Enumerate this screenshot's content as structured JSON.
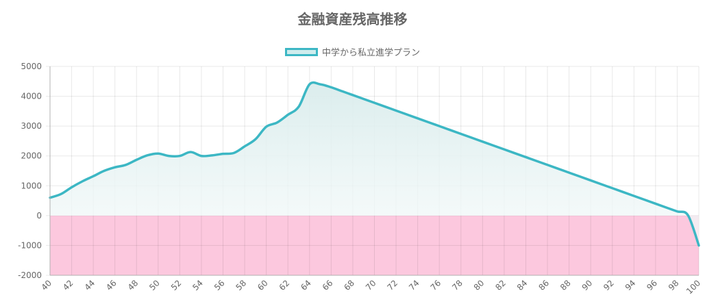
{
  "chart_data": {
    "type": "area",
    "title": "金融資産残高推移",
    "legend": {
      "placement": "top-center",
      "entries": [
        "中学から私立進学プラン"
      ]
    },
    "x_tick_labels": [
      "40",
      "42",
      "44",
      "46",
      "48",
      "50",
      "52",
      "54",
      "56",
      "58",
      "60",
      "62",
      "64",
      "66",
      "68",
      "70",
      "72",
      "74",
      "76",
      "78",
      "80",
      "82",
      "84",
      "86",
      "88",
      "90",
      "92",
      "94",
      "96",
      "98",
      "100"
    ],
    "y_tick_labels": [
      "5000",
      "4000",
      "3000",
      "2000",
      "1000",
      "0",
      "-1000",
      "-2000"
    ],
    "xlim": [
      40,
      100
    ],
    "ylim": [
      -2000,
      5000
    ],
    "grid": true,
    "negative_region_color": "#fcc8de",
    "series": [
      {
        "name": "中学から私立進学プラン",
        "color": "#3cb7c4",
        "x": [
          40,
          41,
          42,
          43,
          44,
          45,
          46,
          47,
          48,
          49,
          50,
          51,
          52,
          53,
          54,
          55,
          56,
          57,
          58,
          59,
          60,
          61,
          62,
          63,
          64,
          65,
          66,
          67,
          68,
          69,
          70,
          71,
          72,
          73,
          74,
          75,
          76,
          77,
          78,
          79,
          80,
          81,
          82,
          83,
          84,
          85,
          86,
          87,
          88,
          89,
          90,
          91,
          92,
          93,
          94,
          95,
          96,
          97,
          98,
          99,
          100
        ],
        "values": [
          600,
          720,
          950,
          1150,
          1320,
          1500,
          1620,
          1700,
          1870,
          2020,
          2080,
          2000,
          2000,
          2130,
          2000,
          2020,
          2070,
          2100,
          2320,
          2560,
          2980,
          3120,
          3380,
          3650,
          4400,
          4400,
          4300,
          4170,
          4040,
          3910,
          3780,
          3650,
          3520,
          3390,
          3260,
          3130,
          3000,
          2870,
          2740,
          2610,
          2480,
          2350,
          2220,
          2090,
          1960,
          1830,
          1700,
          1570,
          1440,
          1310,
          1180,
          1050,
          920,
          790,
          660,
          530,
          400,
          270,
          140,
          10,
          -1000
        ]
      }
    ]
  }
}
